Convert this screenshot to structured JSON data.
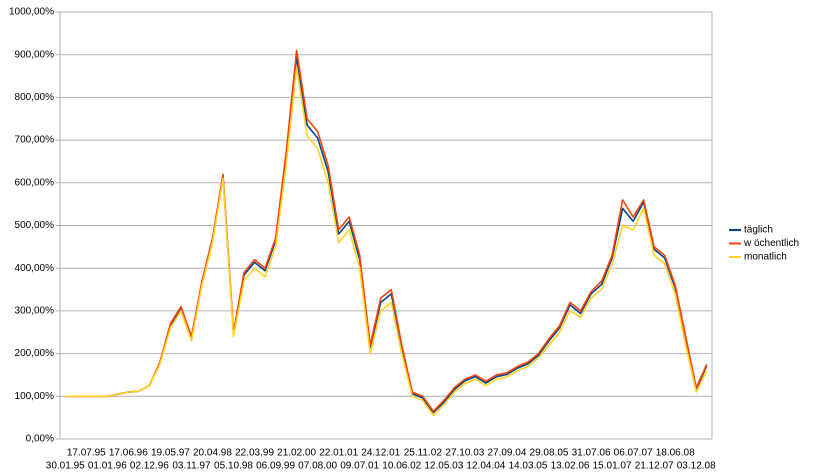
{
  "chart_data": {
    "type": "line",
    "categories": [
      "30.01.95",
      null,
      "17.07.95",
      null,
      "01.01.96",
      null,
      "17.06.96",
      null,
      "02.12.96",
      null,
      "19.05.97",
      null,
      "03.11.97",
      null,
      "20.04.98",
      null,
      "05.10.98",
      null,
      "22.03.99",
      null,
      "06.09.99",
      null,
      "21.02.00",
      null,
      "07.08.00",
      null,
      "22.01.01",
      null,
      "09.07.01",
      null,
      "24.12.01",
      null,
      "10.06.02",
      null,
      "25.11.02",
      null,
      "12.05.03",
      null,
      "27.10.03",
      null,
      "12.04.04",
      null,
      "27.09.04",
      null,
      "14.03.05",
      null,
      "29.08.05",
      null,
      "13.02.06",
      null,
      "31.07.06",
      null,
      "15.01.07",
      null,
      "06.07.07",
      null,
      "21.12.07",
      null,
      "18.06.08",
      null,
      "03.12.08",
      null
    ],
    "series": [
      {
        "name": "täglich",
        "color": "#004586",
        "values": [
          100,
          100,
          100,
          100,
          100,
          105,
          110,
          112,
          125,
          178,
          266,
          306,
          236,
          366,
          466,
          616,
          246,
          384,
          414,
          394,
          464,
          660,
          895,
          735,
          705,
          626,
          480,
          510,
          420,
          214,
          320,
          340,
          214,
          106,
          96,
          62,
          86,
          116,
          136,
          146,
          131,
          146,
          151,
          166,
          176,
          196,
          230,
          260,
          314,
          294,
          340,
          362,
          424,
          540,
          510,
          555,
          444,
          424,
          354,
          234,
          116,
          172
        ]
      },
      {
        "name": "w öchentlich",
        "color": "#ff420e",
        "values": [
          100,
          100,
          100,
          100,
          100,
          105,
          110,
          112,
          125,
          180,
          270,
          310,
          240,
          370,
          470,
          620,
          250,
          390,
          420,
          400,
          470,
          670,
          910,
          750,
          720,
          640,
          490,
          520,
          430,
          220,
          330,
          350,
          220,
          110,
          100,
          65,
          90,
          120,
          140,
          150,
          135,
          150,
          155,
          170,
          180,
          200,
          235,
          265,
          320,
          300,
          345,
          370,
          430,
          560,
          520,
          560,
          450,
          430,
          360,
          240,
          120,
          175
        ]
      },
      {
        "name": "monatlich",
        "color": "#ffd320",
        "values": [
          100,
          100,
          100,
          100,
          100,
          105,
          110,
          112,
          125,
          175,
          260,
          300,
          230,
          360,
          460,
          610,
          240,
          370,
          400,
          380,
          450,
          640,
          870,
          710,
          680,
          600,
          460,
          490,
          400,
          200,
          300,
          320,
          200,
          100,
          90,
          55,
          80,
          110,
          130,
          140,
          125,
          140,
          145,
          160,
          170,
          190,
          220,
          250,
          300,
          285,
          330,
          350,
          410,
          500,
          490,
          540,
          430,
          410,
          340,
          220,
          110,
          160
        ]
      }
    ],
    "ylim": [
      0,
      1000
    ],
    "yticks": [
      {
        "value": 0,
        "label": "0,00%"
      },
      {
        "value": 100,
        "label": "100,00%"
      },
      {
        "value": 200,
        "label": "200,00%"
      },
      {
        "value": 300,
        "label": "300,00%"
      },
      {
        "value": 400,
        "label": "400,00%"
      },
      {
        "value": 500,
        "label": "500,00%"
      },
      {
        "value": 600,
        "label": "600,00%"
      },
      {
        "value": 700,
        "label": "700,00%"
      },
      {
        "value": 800,
        "label": "800,00%"
      },
      {
        "value": 900,
        "label": "900,00%"
      },
      {
        "value": 1000,
        "label": "1000,00%"
      }
    ],
    "grid": true,
    "legend": "right"
  }
}
